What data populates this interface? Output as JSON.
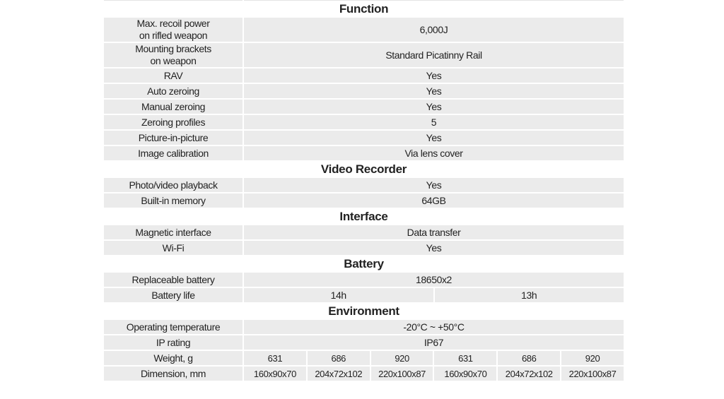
{
  "sections": [
    {
      "title": "Function",
      "rows": [
        {
          "label": [
            "Max. recoil power",
            "on rifled weapon"
          ],
          "values": [
            "6,000J"
          ]
        },
        {
          "label": [
            "Mounting brackets",
            "on weapon"
          ],
          "values": [
            "Standard Picatinny Rail"
          ]
        },
        {
          "label": [
            "RAV"
          ],
          "values": [
            "Yes"
          ]
        },
        {
          "label": [
            "Auto zeroing"
          ],
          "values": [
            "Yes"
          ]
        },
        {
          "label": [
            "Manual zeroing"
          ],
          "values": [
            "Yes"
          ]
        },
        {
          "label": [
            "Zeroing profiles"
          ],
          "values": [
            "5"
          ]
        },
        {
          "label": [
            "Picture-in-picture"
          ],
          "values": [
            "Yes"
          ]
        },
        {
          "label": [
            "Image calibration"
          ],
          "values": [
            "Via lens cover"
          ]
        }
      ]
    },
    {
      "title": "Video Recorder",
      "rows": [
        {
          "label": [
            "Photo/video playback"
          ],
          "values": [
            "Yes"
          ]
        },
        {
          "label": [
            "Built-in memory"
          ],
          "values": [
            "64GB"
          ]
        }
      ]
    },
    {
      "title": "Interface",
      "rows": [
        {
          "label": [
            "Magnetic interface"
          ],
          "values": [
            "Data transfer"
          ]
        },
        {
          "label": [
            "Wi-Fi"
          ],
          "values": [
            "Yes"
          ]
        }
      ]
    },
    {
      "title": "Battery",
      "rows": [
        {
          "label": [
            "Replaceable battery"
          ],
          "values": [
            "18650x2"
          ]
        },
        {
          "label": [
            "Battery life"
          ],
          "values": [
            "14h",
            "13h"
          ]
        }
      ]
    },
    {
      "title": "Environment",
      "rows": [
        {
          "label": [
            "Operating temperature"
          ],
          "values": [
            "-20°C ~ +50°C"
          ]
        },
        {
          "label": [
            "IP rating"
          ],
          "values": [
            "IP67"
          ]
        },
        {
          "label": [
            "Weight, g"
          ],
          "values": [
            "631",
            "686",
            "920",
            "631",
            "686",
            "920"
          ]
        },
        {
          "label": [
            "Dimension, mm"
          ],
          "values": [
            "160x90x70",
            "204x72x102",
            "220x100x87",
            "160x90x70",
            "204x72x102",
            "220x100x87"
          ]
        }
      ]
    }
  ]
}
